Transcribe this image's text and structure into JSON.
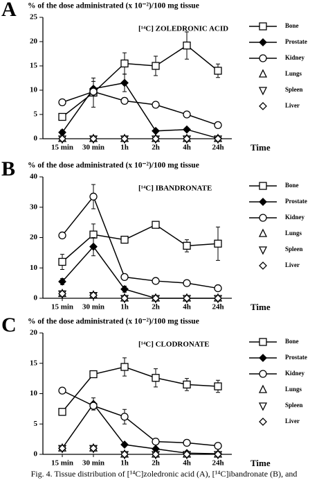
{
  "chart_data": [
    {
      "type": "line",
      "panel": "A",
      "title": "% of the dose administrated (x 10⁻²)/100 mg tissue",
      "annotation": "[¹⁴C] ZOLEDRONIC ACID",
      "categories": [
        "15 min",
        "30 min",
        "1h",
        "2h",
        "4h",
        "24h"
      ],
      "xlabel": "Time",
      "ylim": [
        0,
        25
      ],
      "yticks": [
        0,
        5,
        10,
        15,
        20,
        25
      ],
      "series": [
        {
          "name": "Bone",
          "color": "#000000",
          "marker": "square",
          "filled": false,
          "line": true,
          "values": [
            4.5,
            9.5,
            15.5,
            15,
            19.2,
            14
          ],
          "errors": [
            0.5,
            3,
            2.2,
            2,
            2.8,
            1.4
          ]
        },
        {
          "name": "Prostate",
          "color": "#000000",
          "marker": "diamond",
          "filled": true,
          "line": true,
          "values": [
            1.3,
            10.3,
            11.5,
            1.6,
            1.9,
            0.1
          ],
          "errors": [
            0.5,
            1.5,
            1.8,
            0.3,
            0.3,
            0.1
          ]
        },
        {
          "name": "Kidney",
          "color": "#000000",
          "marker": "circle",
          "filled": false,
          "line": true,
          "values": [
            7.5,
            9.7,
            7.8,
            7,
            5,
            2.8
          ],
          "errors": [
            0.3,
            0.5,
            0.4,
            0.3,
            0.3,
            0.3
          ]
        },
        {
          "name": "Lungs",
          "color": "#000000",
          "marker": "triangle-up",
          "filled": false,
          "line": false,
          "values": [
            0,
            0,
            0,
            0,
            0,
            0
          ]
        },
        {
          "name": "Spleen",
          "color": "#000000",
          "marker": "triangle-down",
          "filled": false,
          "line": false,
          "values": [
            0,
            0,
            0,
            0,
            0,
            0
          ]
        },
        {
          "name": "Liver",
          "color": "#000000",
          "marker": "diamond",
          "filled": false,
          "line": false,
          "values": [
            0,
            0,
            0,
            0,
            0,
            0
          ]
        }
      ]
    },
    {
      "type": "line",
      "panel": "B",
      "title": "% of the dose administrated (x 10⁻²)/100 mg tissue",
      "annotation": "[¹⁴C] IBANDRONATE",
      "categories": [
        "15 min",
        "30 min",
        "1h",
        "2h",
        "4h",
        "24h"
      ],
      "xlabel": "Time",
      "ylim": [
        0,
        40
      ],
      "yticks": [
        0,
        10,
        20,
        30,
        40
      ],
      "series": [
        {
          "name": "Bone",
          "color": "#000000",
          "marker": "square",
          "filled": false,
          "line": true,
          "values": [
            12,
            21,
            19.3,
            24.2,
            17.3,
            18
          ],
          "errors": [
            2.5,
            3.5,
            1,
            1,
            2,
            5.5
          ]
        },
        {
          "name": "Prostate",
          "color": "#000000",
          "marker": "diamond",
          "filled": true,
          "line": true,
          "values": [
            5.5,
            17,
            3,
            0,
            0,
            0
          ],
          "errors": [
            1,
            3,
            1,
            0,
            0,
            0
          ]
        },
        {
          "name": "Kidney",
          "color": "#000000",
          "marker": "circle",
          "filled": false,
          "line": true,
          "values": [
            20.7,
            33.5,
            7,
            5.7,
            5,
            3.3
          ],
          "errors": [
            0.5,
            4,
            0.5,
            0.3,
            0.3,
            0.3
          ]
        },
        {
          "name": "Lungs",
          "color": "#000000",
          "marker": "triangle-up",
          "filled": false,
          "line": false,
          "values": [
            1.5,
            1,
            0,
            0,
            0,
            0
          ]
        },
        {
          "name": "Spleen",
          "color": "#000000",
          "marker": "triangle-down",
          "filled": false,
          "line": false,
          "values": [
            1.5,
            1,
            0,
            0,
            0,
            0
          ]
        },
        {
          "name": "Liver",
          "color": "#000000",
          "marker": "diamond",
          "filled": false,
          "line": false,
          "values": [
            1.5,
            1,
            0,
            0,
            0,
            0
          ]
        }
      ]
    },
    {
      "type": "line",
      "panel": "C",
      "title": "% of the dose administrated (x 10⁻²)/100 mg tissue",
      "annotation": "[¹⁴C] CLODRONATE",
      "categories": [
        "15 min",
        "30 min",
        "1h",
        "2h",
        "4h",
        "24h"
      ],
      "xlabel": "Time",
      "ylim": [
        0,
        20
      ],
      "yticks": [
        0,
        5,
        10,
        15,
        20
      ],
      "series": [
        {
          "name": "Bone",
          "color": "#000000",
          "marker": "square",
          "filled": false,
          "line": true,
          "values": [
            7,
            13.2,
            14.4,
            12.6,
            11.5,
            11.2
          ],
          "errors": [
            0.3,
            0.5,
            1.5,
            1.5,
            1,
            1
          ]
        },
        {
          "name": "Prostate",
          "color": "#000000",
          "marker": "diamond",
          "filled": true,
          "line": true,
          "values": [
            1,
            8.3,
            1.6,
            0.9,
            0.2,
            0.1
          ],
          "errors": [
            0.3,
            1,
            0.3,
            0.2,
            0.1,
            0.1
          ]
        },
        {
          "name": "Kidney",
          "color": "#000000",
          "marker": "circle",
          "filled": false,
          "line": true,
          "values": [
            10.5,
            8,
            6.2,
            2.1,
            1.9,
            1.4
          ],
          "errors": [
            0.2,
            0.5,
            1.2,
            0.3,
            0.3,
            0.3
          ]
        },
        {
          "name": "Lungs",
          "color": "#000000",
          "marker": "triangle-up",
          "filled": false,
          "line": false,
          "values": [
            1,
            1,
            0,
            0,
            0,
            0
          ]
        },
        {
          "name": "Spleen",
          "color": "#000000",
          "marker": "triangle-down",
          "filled": false,
          "line": false,
          "values": [
            1,
            1,
            0,
            0,
            0,
            0
          ]
        },
        {
          "name": "Liver",
          "color": "#000000",
          "marker": "diamond",
          "filled": false,
          "line": false,
          "values": [
            1,
            1,
            0,
            0,
            0,
            0
          ]
        }
      ]
    }
  ],
  "caption": "Fig. 4. Tissue distribution of [¹⁴C]zoledronic acid (A), [¹⁴C]ibandronate (B), and"
}
